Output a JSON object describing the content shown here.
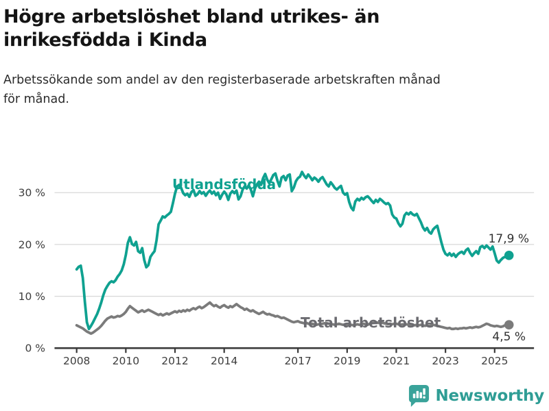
{
  "header": {
    "title_line1": "Högre arbetslöshet bland utrikes- än",
    "title_line2": "inrikesfödda i Kinda",
    "subtitle_line1": "Arbetssökande som andel av den registerbaserade arbetskraften månad",
    "subtitle_line2": "för månad."
  },
  "footer": {
    "brand": "Newsworthy"
  },
  "colors": {
    "accent_teal": "#0fa190",
    "line_gray": "#7b7b7b",
    "label_gray": "#6b6b70",
    "grid": "#d9d9d9",
    "axis": "#3a3a3a",
    "logo_teal": "#3aa39a"
  },
  "chart_data": {
    "type": "line",
    "title": "Högre arbetslöshet bland utrikes- än inrikesfödda i Kinda",
    "subtitle": "Arbetssökande som andel av den registerbaserade arbetskraften månad för månad.",
    "grid": "horizontal-only",
    "x_axis": {
      "min": 2007.1,
      "max": 2026.6,
      "ticks": [
        2008,
        2010,
        2012,
        2014,
        2017,
        2019,
        2021,
        2023,
        2025
      ],
      "tick_labels": [
        "2008",
        "2010",
        "2012",
        "2014",
        "2017",
        "2019",
        "2021",
        "2023",
        "2025"
      ]
    },
    "y_axis": {
      "min": 0,
      "max": 35,
      "unit": "%",
      "ticks": [
        0,
        10,
        20,
        30
      ],
      "tick_labels": [
        "0 %",
        "10 %",
        "20 %",
        "30 %"
      ]
    },
    "series": [
      {
        "name": "Utlandsfödda",
        "color": "#0fa190",
        "x_start": 2008.0,
        "x_step_years": 0.083333,
        "end_label": "17,9 %",
        "last_value": 17.9,
        "values": [
          15.2,
          15.7,
          15.9,
          13.5,
          9.0,
          5.0,
          3.7,
          4.3,
          5.0,
          5.8,
          6.6,
          7.6,
          8.8,
          10.2,
          11.3,
          12.0,
          12.6,
          12.9,
          12.7,
          13.1,
          13.8,
          14.3,
          15.0,
          16.2,
          18.0,
          20.3,
          21.4,
          20.1,
          19.8,
          20.5,
          18.7,
          18.4,
          19.3,
          17.0,
          15.6,
          16.0,
          17.6,
          18.2,
          18.7,
          20.8,
          23.9,
          24.6,
          25.4,
          25.2,
          25.6,
          25.9,
          26.3,
          28.0,
          29.8,
          31.2,
          31.5,
          30.9,
          29.9,
          29.5,
          29.8,
          29.2,
          30.1,
          30.5,
          29.4,
          29.7,
          30.3,
          29.8,
          30.1,
          29.4,
          30.0,
          30.4,
          29.8,
          30.2,
          29.5,
          30.0,
          28.8,
          29.6,
          30.2,
          29.7,
          28.6,
          29.8,
          30.3,
          29.9,
          30.4,
          28.7,
          29.3,
          30.6,
          31.2,
          30.8,
          31.4,
          30.6,
          29.3,
          30.8,
          31.6,
          32.1,
          31.5,
          32.8,
          33.6,
          32.5,
          31.8,
          32.6,
          33.4,
          33.7,
          32.3,
          31.2,
          32.9,
          33.2,
          32.4,
          33.3,
          33.5,
          30.3,
          31.0,
          32.2,
          32.8,
          33.1,
          34.0,
          33.3,
          32.8,
          33.5,
          33.0,
          32.4,
          32.9,
          32.6,
          32.1,
          32.7,
          33.0,
          32.3,
          31.6,
          31.2,
          32.0,
          31.5,
          30.9,
          30.6,
          31.0,
          31.3,
          30.0,
          29.6,
          29.9,
          28.2,
          27.1,
          26.6,
          28.3,
          28.8,
          28.5,
          29.0,
          28.7,
          29.1,
          29.3,
          28.9,
          28.4,
          28.0,
          28.6,
          28.2,
          28.8,
          28.5,
          28.1,
          27.8,
          28.0,
          27.5,
          25.8,
          25.2,
          25.0,
          24.1,
          23.5,
          24.0,
          25.6,
          26.1,
          25.8,
          26.2,
          25.8,
          25.6,
          25.9,
          25.1,
          24.3,
          23.3,
          22.7,
          23.2,
          22.4,
          22.1,
          22.9,
          23.3,
          23.6,
          22.0,
          20.4,
          19.0,
          18.2,
          17.9,
          18.3,
          17.8,
          18.2,
          17.6,
          18.1,
          18.4,
          18.6,
          18.2,
          18.9,
          19.2,
          18.4,
          17.8,
          18.3,
          18.7,
          18.2,
          19.5,
          19.7,
          19.3,
          19.8,
          19.4,
          19.0,
          19.6,
          18.3,
          16.9,
          16.5,
          17.0,
          17.4,
          17.6,
          17.5,
          17.9
        ]
      },
      {
        "name": "Total arbetslöshet",
        "color": "#7b7b7b",
        "x_start": 2008.0,
        "x_step_years": 0.083333,
        "end_label": "4,5 %",
        "last_value": 4.5,
        "values": [
          4.4,
          4.2,
          4.0,
          3.8,
          3.5,
          3.2,
          3.0,
          2.8,
          3.0,
          3.3,
          3.6,
          3.9,
          4.3,
          4.8,
          5.3,
          5.7,
          5.9,
          6.1,
          5.9,
          6.0,
          6.2,
          6.1,
          6.3,
          6.6,
          7.0,
          7.6,
          8.1,
          7.8,
          7.5,
          7.2,
          6.9,
          7.1,
          7.3,
          7.0,
          7.2,
          7.4,
          7.2,
          7.0,
          6.8,
          6.6,
          6.4,
          6.6,
          6.3,
          6.5,
          6.7,
          6.5,
          6.7,
          6.9,
          7.1,
          6.9,
          7.2,
          7.0,
          7.3,
          7.1,
          7.4,
          7.2,
          7.5,
          7.7,
          7.5,
          7.8,
          8.0,
          7.7,
          7.9,
          8.2,
          8.5,
          8.8,
          8.4,
          8.1,
          8.3,
          8.0,
          7.8,
          8.1,
          8.3,
          8.0,
          7.8,
          8.1,
          7.9,
          8.2,
          8.5,
          8.2,
          7.9,
          7.7,
          7.4,
          7.6,
          7.3,
          7.1,
          7.3,
          7.0,
          6.8,
          6.6,
          6.8,
          7.0,
          6.7,
          6.5,
          6.6,
          6.4,
          6.3,
          6.1,
          6.2,
          6.0,
          5.8,
          5.9,
          5.7,
          5.5,
          5.3,
          5.1,
          5.0,
          5.1,
          5.2,
          5.0,
          4.9,
          4.8,
          4.9,
          4.7,
          4.6,
          4.7,
          4.6,
          4.5,
          4.6,
          4.6,
          4.7,
          4.8,
          4.8,
          4.7,
          4.6,
          4.6,
          4.5,
          4.6,
          4.7,
          4.6,
          4.5,
          4.6,
          4.5,
          4.6,
          4.5,
          4.4,
          4.5,
          4.6,
          4.5,
          4.6,
          4.7,
          4.6,
          4.5,
          4.7,
          4.8,
          4.9,
          5.0,
          4.9,
          4.8,
          4.9,
          4.8,
          4.7,
          4.6,
          4.7,
          4.6,
          4.7,
          4.7,
          4.6,
          4.5,
          4.6,
          4.5,
          4.6,
          4.5,
          4.4,
          4.5,
          4.4,
          4.5,
          4.4,
          4.5,
          4.4,
          4.3,
          4.4,
          4.3,
          4.4,
          4.5,
          4.4,
          4.3,
          4.2,
          4.1,
          4.0,
          3.9,
          3.8,
          3.9,
          3.7,
          3.7,
          3.8,
          3.7,
          3.8,
          3.8,
          3.9,
          3.8,
          3.9,
          4.0,
          3.9,
          4.0,
          4.1,
          4.0,
          4.1,
          4.3,
          4.5,
          4.7,
          4.6,
          4.4,
          4.3,
          4.2,
          4.3,
          4.2,
          4.1,
          4.2,
          4.4,
          4.4,
          4.5
        ]
      }
    ]
  }
}
